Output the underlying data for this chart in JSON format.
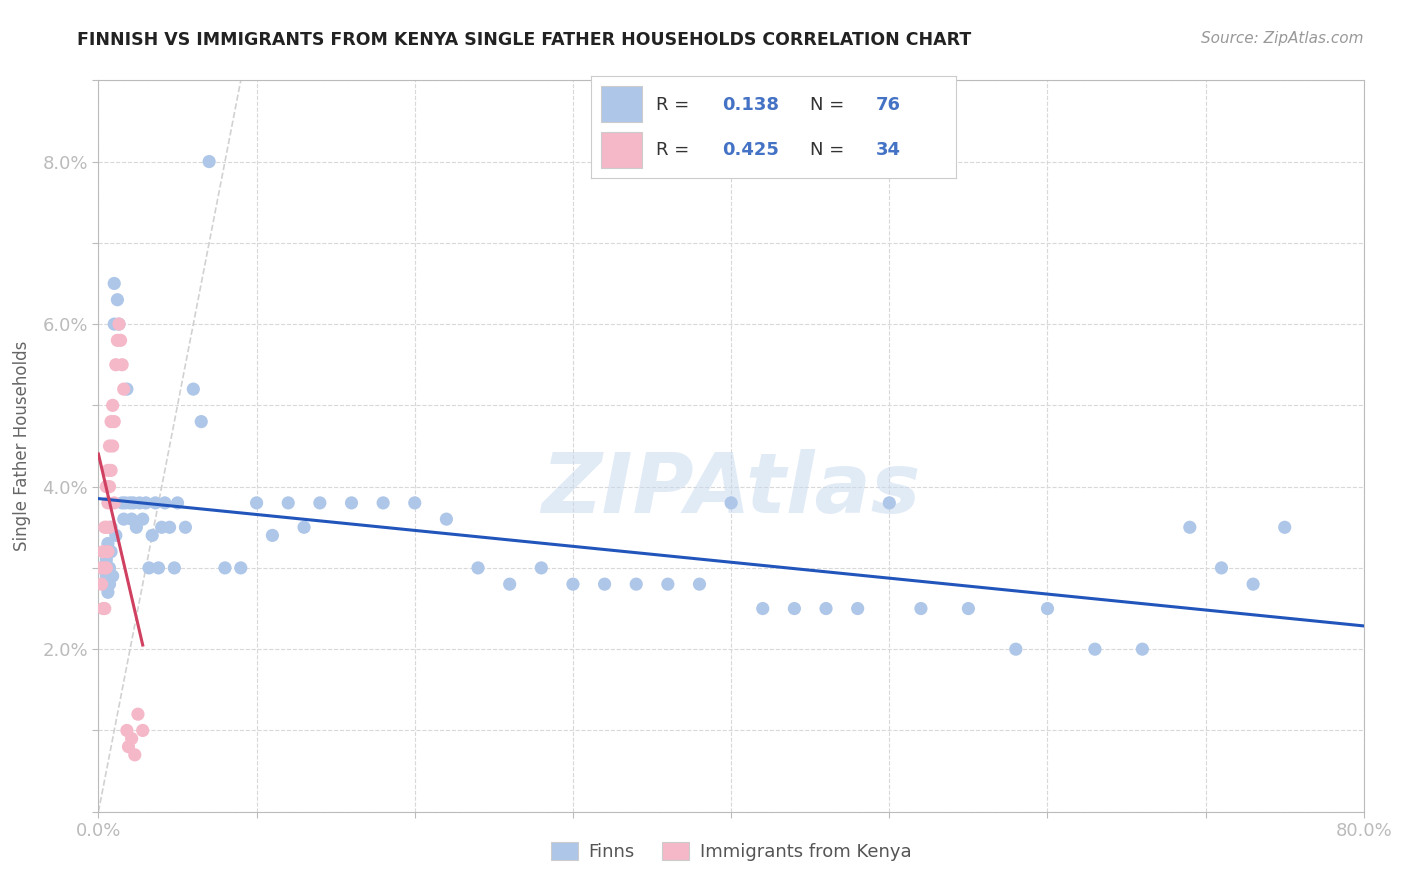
{
  "title": "FINNISH VS IMMIGRANTS FROM KENYA SINGLE FATHER HOUSEHOLDS CORRELATION CHART",
  "source": "Source: ZipAtlas.com",
  "ylabel_label": "Single Father Households",
  "x_min": 0.0,
  "x_max": 0.8,
  "y_min": 0.0,
  "y_max": 0.09,
  "background_color": "#ffffff",
  "grid_color": "#d8d8d8",
  "title_color": "#222222",
  "axis_color": "#4472c4",
  "watermark": "ZIPAtlas",
  "finns_color": "#aec6e8",
  "kenya_color": "#f4b8c8",
  "finns_line_color": "#2255bb",
  "kenya_line_color": "#d04060",
  "diagonal_color": "#cccccc",
  "R_finns": 0.138,
  "N_finns": 76,
  "R_kenya": 0.425,
  "N_kenya": 34,
  "finns_x": [
    0.002,
    0.003,
    0.004,
    0.005,
    0.005,
    0.006,
    0.006,
    0.007,
    0.007,
    0.008,
    0.008,
    0.009,
    0.01,
    0.01,
    0.011,
    0.012,
    0.013,
    0.015,
    0.016,
    0.017,
    0.018,
    0.02,
    0.021,
    0.022,
    0.024,
    0.026,
    0.028,
    0.03,
    0.032,
    0.034,
    0.036,
    0.038,
    0.04,
    0.042,
    0.045,
    0.048,
    0.05,
    0.055,
    0.06,
    0.065,
    0.07,
    0.08,
    0.09,
    0.1,
    0.11,
    0.12,
    0.13,
    0.14,
    0.16,
    0.18,
    0.2,
    0.22,
    0.24,
    0.26,
    0.28,
    0.3,
    0.32,
    0.34,
    0.36,
    0.38,
    0.4,
    0.42,
    0.44,
    0.46,
    0.48,
    0.5,
    0.52,
    0.55,
    0.58,
    0.6,
    0.63,
    0.66,
    0.69,
    0.71,
    0.73,
    0.75
  ],
  "finns_y": [
    0.03,
    0.028,
    0.032,
    0.029,
    0.031,
    0.027,
    0.033,
    0.028,
    0.03,
    0.035,
    0.032,
    0.029,
    0.06,
    0.065,
    0.034,
    0.063,
    0.06,
    0.038,
    0.036,
    0.038,
    0.052,
    0.038,
    0.036,
    0.038,
    0.035,
    0.038,
    0.036,
    0.038,
    0.03,
    0.034,
    0.038,
    0.03,
    0.035,
    0.038,
    0.035,
    0.03,
    0.038,
    0.035,
    0.052,
    0.048,
    0.08,
    0.03,
    0.03,
    0.038,
    0.034,
    0.038,
    0.035,
    0.038,
    0.038,
    0.038,
    0.038,
    0.036,
    0.03,
    0.028,
    0.03,
    0.028,
    0.028,
    0.028,
    0.028,
    0.028,
    0.038,
    0.025,
    0.025,
    0.025,
    0.025,
    0.038,
    0.025,
    0.025,
    0.02,
    0.025,
    0.02,
    0.02,
    0.035,
    0.03,
    0.028,
    0.035
  ],
  "kenya_x": [
    0.002,
    0.002,
    0.003,
    0.003,
    0.004,
    0.004,
    0.004,
    0.005,
    0.005,
    0.005,
    0.006,
    0.006,
    0.006,
    0.007,
    0.007,
    0.007,
    0.008,
    0.008,
    0.009,
    0.009,
    0.01,
    0.01,
    0.011,
    0.012,
    0.013,
    0.014,
    0.015,
    0.016,
    0.018,
    0.019,
    0.021,
    0.023,
    0.025,
    0.028
  ],
  "kenya_y": [
    0.03,
    0.028,
    0.032,
    0.025,
    0.035,
    0.03,
    0.025,
    0.04,
    0.035,
    0.03,
    0.042,
    0.038,
    0.032,
    0.045,
    0.04,
    0.035,
    0.048,
    0.042,
    0.05,
    0.045,
    0.048,
    0.038,
    0.055,
    0.058,
    0.06,
    0.058,
    0.055,
    0.052,
    0.01,
    0.008,
    0.009,
    0.007,
    0.012,
    0.01
  ]
}
